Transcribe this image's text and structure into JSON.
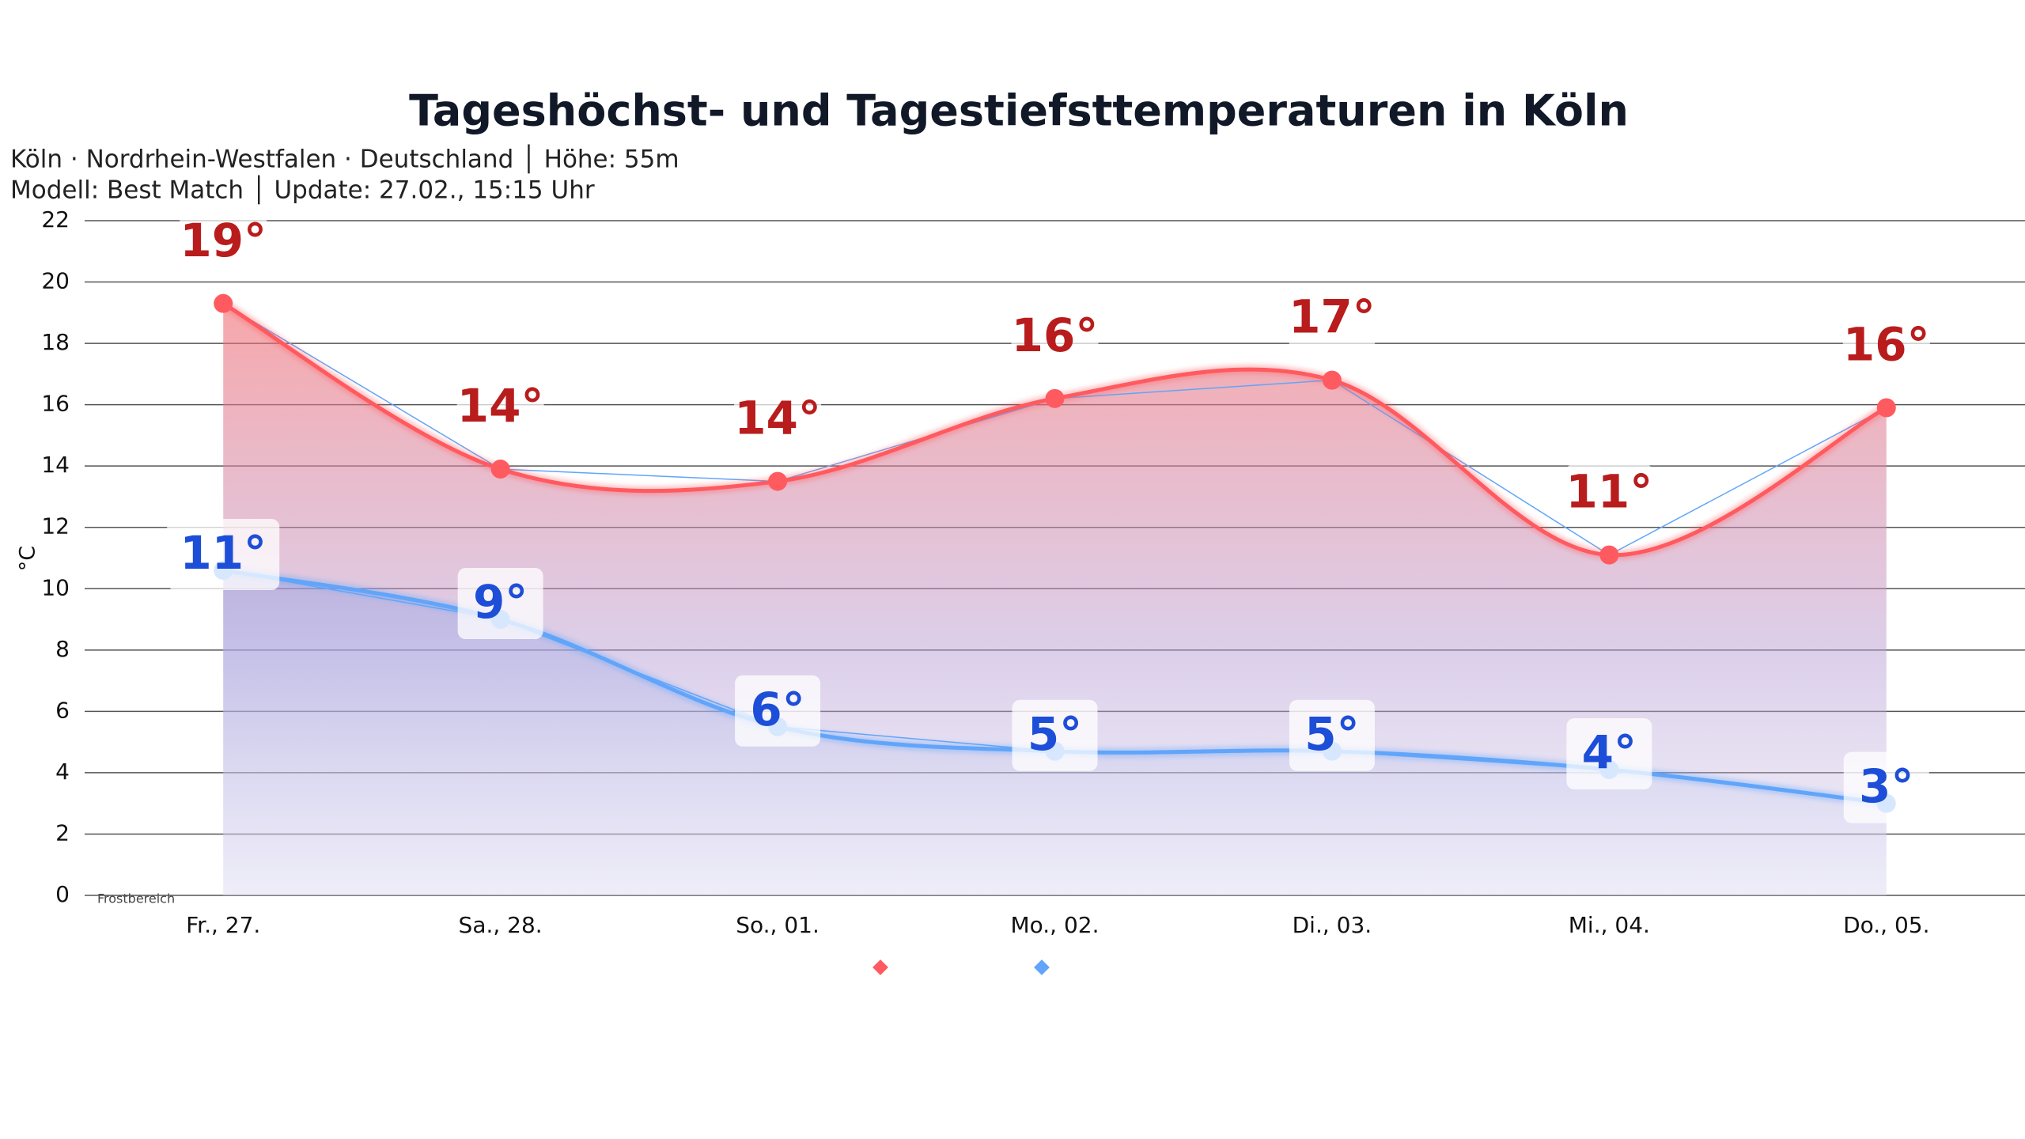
{
  "chart_data": {
    "type": "line",
    "title": "Tageshöchst- und Tagestiefsttemperaturen in Köln",
    "subtitle": [
      "Köln · Nordrhein-Westfalen · Deutschland │ Höhe: 55m",
      "Modell: Best Match │ Update: 27.02., 15:15 Uhr"
    ],
    "y_label": "°C",
    "annotation": "Frostbereich",
    "categories": [
      "Fr., 27.",
      "Sa., 28.",
      "So., 01.",
      "Mo., 02.",
      "Di., 03.",
      "Mi., 04.",
      "Do., 05."
    ],
    "series": [
      {
        "color": "#ff5a5f",
        "label_color": "#b91c1c",
        "values": [
          19.3,
          13.9,
          13.5,
          16.2,
          16.8,
          11.1,
          15.9
        ],
        "value_labels": [
          "19°",
          "14°",
          "14°",
          "16°",
          "17°",
          "11°",
          "16°"
        ]
      },
      {
        "color": "#60a5fa",
        "label_color": "#1d4ed8",
        "values": [
          10.6,
          9.0,
          5.5,
          4.7,
          4.7,
          4.1,
          3.0
        ],
        "value_labels": [
          "11°",
          "9°",
          "6°",
          "5°",
          "5°",
          "4°",
          "3°"
        ]
      }
    ],
    "ylim": [
      0,
      22
    ],
    "yticks": [
      0,
      2,
      4,
      6,
      8,
      10,
      12,
      14,
      16,
      18,
      20,
      22
    ],
    "grid": true
  }
}
